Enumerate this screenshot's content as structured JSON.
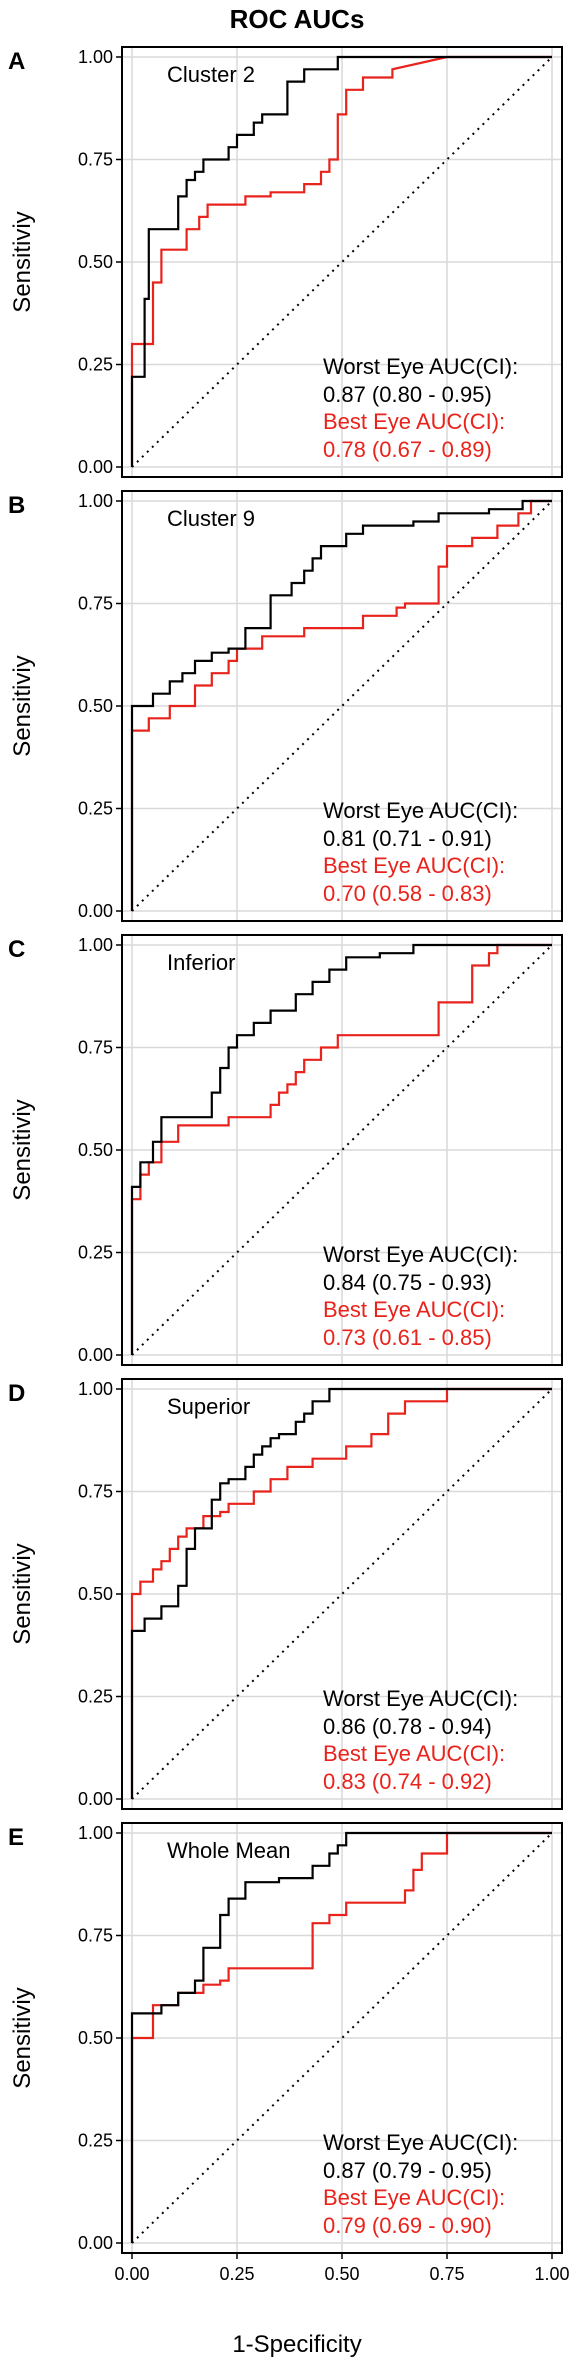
{
  "figure": {
    "title": "ROC AUCs",
    "xlabel": "1-Specificity",
    "ylabel": "Sensitiviy"
  },
  "colors": {
    "worst": "#000000",
    "best": "#e8231c",
    "grid": "#d9d9d9",
    "frame": "#000000"
  },
  "chart_data": [
    {
      "type": "line",
      "letter": "A",
      "label": "Cluster 2",
      "xlim": [
        0,
        1
      ],
      "ylim": [
        0,
        1
      ],
      "xticks": [
        "0.00",
        "0.25",
        "0.50",
        "0.75",
        "1.00"
      ],
      "yticks": [
        "0.00",
        "0.25",
        "0.50",
        "0.75",
        "1.00"
      ],
      "grid": true,
      "reference_line": "diagonal",
      "series": [
        {
          "x": [
            0,
            0,
            0.03,
            0.03,
            0.04,
            0.04,
            0.11,
            0.11,
            0.13,
            0.13,
            0.15,
            0.15,
            0.17,
            0.17,
            0.23,
            0.23,
            0.25,
            0.25,
            0.29,
            0.29,
            0.31,
            0.31,
            0.37,
            0.37,
            0.41,
            0.41,
            0.49,
            0.49,
            0.53,
            0.53,
            1.0
          ],
          "y": [
            0,
            0.22,
            0.22,
            0.41,
            0.41,
            0.58,
            0.58,
            0.66,
            0.66,
            0.7,
            0.7,
            0.72,
            0.72,
            0.75,
            0.75,
            0.78,
            0.78,
            0.81,
            0.81,
            0.84,
            0.84,
            0.86,
            0.86,
            0.94,
            0.94,
            0.97,
            0.97,
            1.0,
            1.0,
            1.0,
            1.0
          ]
        },
        {
          "x": [
            0,
            0,
            0.05,
            0.05,
            0.07,
            0.07,
            0.13,
            0.13,
            0.16,
            0.16,
            0.18,
            0.18,
            0.27,
            0.27,
            0.33,
            0.33,
            0.41,
            0.41,
            0.45,
            0.45,
            0.47,
            0.47,
            0.49,
            0.49,
            0.51,
            0.51,
            0.55,
            0.55,
            0.62,
            0.62,
            0.75,
            1.0
          ],
          "y": [
            0,
            0.3,
            0.3,
            0.45,
            0.45,
            0.53,
            0.53,
            0.58,
            0.58,
            0.61,
            0.61,
            0.64,
            0.64,
            0.66,
            0.66,
            0.67,
            0.67,
            0.69,
            0.69,
            0.72,
            0.72,
            0.75,
            0.75,
            0.86,
            0.86,
            0.92,
            0.92,
            0.95,
            0.95,
            0.97,
            1.0,
            1.0
          ]
        }
      ],
      "annotations": [
        {
          "line1": "Worst Eye AUC(CI):",
          "line2": "0.87 (0.80 - 0.95)"
        },
        {
          "line1": "Best Eye AUC(CI):",
          "line2": "0.78 (0.67 - 0.89)"
        }
      ]
    },
    {
      "type": "line",
      "letter": "B",
      "label": "Cluster 9",
      "xlim": [
        0,
        1
      ],
      "ylim": [
        0,
        1
      ],
      "xticks": [
        "0.00",
        "0.25",
        "0.50",
        "0.75",
        "1.00"
      ],
      "yticks": [
        "0.00",
        "0.25",
        "0.50",
        "0.75",
        "1.00"
      ],
      "grid": true,
      "reference_line": "diagonal",
      "series": [
        {
          "x": [
            0,
            0,
            0.05,
            0.05,
            0.09,
            0.09,
            0.12,
            0.12,
            0.15,
            0.15,
            0.19,
            0.19,
            0.23,
            0.23,
            0.27,
            0.27,
            0.33,
            0.33,
            0.38,
            0.38,
            0.41,
            0.41,
            0.43,
            0.43,
            0.45,
            0.45,
            0.51,
            0.51,
            0.55,
            0.55,
            0.67,
            0.67,
            0.73,
            0.73,
            0.85,
            0.85,
            0.93,
            0.93,
            0.97,
            0.97,
            1.0
          ],
          "y": [
            0,
            0.5,
            0.5,
            0.53,
            0.53,
            0.56,
            0.56,
            0.58,
            0.58,
            0.61,
            0.61,
            0.63,
            0.63,
            0.64,
            0.64,
            0.69,
            0.69,
            0.77,
            0.77,
            0.8,
            0.8,
            0.83,
            0.83,
            0.86,
            0.86,
            0.89,
            0.89,
            0.92,
            0.92,
            0.94,
            0.94,
            0.95,
            0.95,
            0.97,
            0.97,
            0.98,
            0.98,
            1.0,
            1.0,
            1.0,
            1.0
          ]
        },
        {
          "x": [
            0,
            0,
            0.04,
            0.04,
            0.09,
            0.09,
            0.15,
            0.15,
            0.19,
            0.19,
            0.23,
            0.23,
            0.25,
            0.25,
            0.31,
            0.31,
            0.41,
            0.41,
            0.55,
            0.55,
            0.63,
            0.63,
            0.65,
            0.65,
            0.73,
            0.73,
            0.75,
            0.75,
            0.81,
            0.81,
            0.87,
            0.87,
            0.92,
            0.92,
            0.95,
            0.95,
            1.0
          ],
          "y": [
            0,
            0.44,
            0.44,
            0.47,
            0.47,
            0.5,
            0.5,
            0.55,
            0.55,
            0.58,
            0.58,
            0.61,
            0.61,
            0.64,
            0.64,
            0.67,
            0.67,
            0.69,
            0.69,
            0.72,
            0.72,
            0.74,
            0.74,
            0.75,
            0.75,
            0.84,
            0.84,
            0.89,
            0.89,
            0.91,
            0.91,
            0.94,
            0.94,
            0.97,
            0.97,
            1.0,
            1.0
          ]
        }
      ],
      "annotations": [
        {
          "line1": "Worst Eye AUC(CI):",
          "line2": "0.81 (0.71 - 0.91)"
        },
        {
          "line1": "Best Eye AUC(CI):",
          "line2": "0.70 (0.58 - 0.83)"
        }
      ]
    },
    {
      "type": "line",
      "letter": "C",
      "label": "Inferior",
      "xlim": [
        0,
        1
      ],
      "ylim": [
        0,
        1
      ],
      "xticks": [
        "0.00",
        "0.25",
        "0.50",
        "0.75",
        "1.00"
      ],
      "yticks": [
        "0.00",
        "0.25",
        "0.50",
        "0.75",
        "1.00"
      ],
      "grid": true,
      "reference_line": "diagonal",
      "series": [
        {
          "x": [
            0,
            0,
            0.02,
            0.02,
            0.05,
            0.05,
            0.07,
            0.07,
            0.19,
            0.19,
            0.21,
            0.21,
            0.23,
            0.23,
            0.25,
            0.25,
            0.29,
            0.29,
            0.33,
            0.33,
            0.39,
            0.39,
            0.43,
            0.43,
            0.47,
            0.47,
            0.51,
            0.51,
            0.59,
            0.59,
            0.67,
            0.67,
            0.73,
            0.73,
            1.0
          ],
          "y": [
            0,
            0.41,
            0.41,
            0.47,
            0.47,
            0.52,
            0.52,
            0.58,
            0.58,
            0.64,
            0.64,
            0.7,
            0.7,
            0.75,
            0.75,
            0.78,
            0.78,
            0.81,
            0.81,
            0.84,
            0.84,
            0.88,
            0.88,
            0.91,
            0.91,
            0.94,
            0.94,
            0.97,
            0.97,
            0.98,
            0.98,
            1.0,
            1.0,
            1.0,
            1.0
          ]
        },
        {
          "x": [
            0,
            0,
            0.02,
            0.02,
            0.04,
            0.04,
            0.07,
            0.07,
            0.11,
            0.11,
            0.23,
            0.23,
            0.33,
            0.33,
            0.35,
            0.35,
            0.37,
            0.37,
            0.39,
            0.39,
            0.41,
            0.41,
            0.45,
            0.45,
            0.49,
            0.49,
            0.73,
            0.73,
            0.81,
            0.81,
            0.85,
            0.85,
            0.87,
            0.87,
            1.0
          ],
          "y": [
            0,
            0.38,
            0.38,
            0.44,
            0.44,
            0.47,
            0.47,
            0.52,
            0.52,
            0.56,
            0.56,
            0.58,
            0.58,
            0.61,
            0.61,
            0.64,
            0.64,
            0.66,
            0.66,
            0.69,
            0.69,
            0.72,
            0.72,
            0.75,
            0.75,
            0.78,
            0.78,
            0.86,
            0.86,
            0.95,
            0.95,
            0.98,
            0.98,
            1.0,
            1.0
          ]
        }
      ],
      "annotations": [
        {
          "line1": "Worst Eye AUC(CI):",
          "line2": "0.84 (0.75 - 0.93)"
        },
        {
          "line1": "Best Eye AUC(CI):",
          "line2": "0.73 (0.61 - 0.85)"
        }
      ]
    },
    {
      "type": "line",
      "letter": "D",
      "label": "Superior",
      "xlim": [
        0,
        1
      ],
      "ylim": [
        0,
        1
      ],
      "xticks": [
        "0.00",
        "0.25",
        "0.50",
        "0.75",
        "1.00"
      ],
      "yticks": [
        "0.00",
        "0.25",
        "0.50",
        "0.75",
        "1.00"
      ],
      "grid": true,
      "reference_line": "diagonal",
      "series": [
        {
          "x": [
            0,
            0,
            0.03,
            0.03,
            0.07,
            0.07,
            0.11,
            0.11,
            0.13,
            0.13,
            0.15,
            0.15,
            0.19,
            0.19,
            0.21,
            0.21,
            0.23,
            0.23,
            0.27,
            0.27,
            0.29,
            0.29,
            0.31,
            0.31,
            0.33,
            0.33,
            0.35,
            0.35,
            0.39,
            0.39,
            0.41,
            0.41,
            0.43,
            0.43,
            0.47,
            0.47,
            1.0
          ],
          "y": [
            0,
            0.41,
            0.41,
            0.44,
            0.44,
            0.47,
            0.47,
            0.52,
            0.52,
            0.61,
            0.61,
            0.66,
            0.66,
            0.73,
            0.73,
            0.77,
            0.77,
            0.78,
            0.78,
            0.81,
            0.81,
            0.84,
            0.84,
            0.86,
            0.86,
            0.88,
            0.88,
            0.89,
            0.89,
            0.92,
            0.92,
            0.94,
            0.94,
            0.97,
            0.97,
            1.0,
            1.0
          ]
        },
        {
          "x": [
            0,
            0,
            0.02,
            0.02,
            0.05,
            0.05,
            0.07,
            0.07,
            0.09,
            0.09,
            0.11,
            0.11,
            0.13,
            0.13,
            0.17,
            0.17,
            0.21,
            0.21,
            0.23,
            0.23,
            0.29,
            0.29,
            0.33,
            0.33,
            0.37,
            0.37,
            0.43,
            0.43,
            0.51,
            0.51,
            0.57,
            0.57,
            0.61,
            0.61,
            0.65,
            0.65,
            0.75,
            0.75,
            1.0
          ],
          "y": [
            0,
            0.5,
            0.5,
            0.53,
            0.53,
            0.56,
            0.56,
            0.58,
            0.58,
            0.61,
            0.61,
            0.64,
            0.64,
            0.66,
            0.66,
            0.69,
            0.69,
            0.7,
            0.7,
            0.72,
            0.72,
            0.75,
            0.75,
            0.78,
            0.78,
            0.81,
            0.81,
            0.83,
            0.83,
            0.86,
            0.86,
            0.89,
            0.89,
            0.94,
            0.94,
            0.97,
            0.97,
            1.0,
            1.0
          ]
        }
      ],
      "annotations": [
        {
          "line1": "Worst Eye AUC(CI):",
          "line2": "0.86 (0.78 - 0.94)"
        },
        {
          "line1": "Best Eye AUC(CI):",
          "line2": "0.83 (0.74 - 0.92)"
        }
      ]
    },
    {
      "type": "line",
      "letter": "E",
      "label": "Whole Mean",
      "xlim": [
        0,
        1
      ],
      "ylim": [
        0,
        1
      ],
      "xticks": [
        "0.00",
        "0.25",
        "0.50",
        "0.75",
        "1.00"
      ],
      "yticks": [
        "0.00",
        "0.25",
        "0.50",
        "0.75",
        "1.00"
      ],
      "grid": true,
      "reference_line": "diagonal",
      "series": [
        {
          "x": [
            0,
            0,
            0.07,
            0.07,
            0.11,
            0.11,
            0.15,
            0.15,
            0.17,
            0.17,
            0.21,
            0.21,
            0.23,
            0.23,
            0.27,
            0.27,
            0.35,
            0.35,
            0.43,
            0.43,
            0.47,
            0.47,
            0.49,
            0.49,
            0.51,
            0.51,
            1.0
          ],
          "y": [
            0,
            0.56,
            0.56,
            0.58,
            0.58,
            0.61,
            0.61,
            0.64,
            0.64,
            0.72,
            0.72,
            0.8,
            0.8,
            0.84,
            0.84,
            0.88,
            0.88,
            0.89,
            0.89,
            0.92,
            0.92,
            0.95,
            0.95,
            0.97,
            0.97,
            1.0,
            1.0
          ]
        },
        {
          "x": [
            0,
            0,
            0.05,
            0.05,
            0.11,
            0.11,
            0.17,
            0.17,
            0.21,
            0.21,
            0.23,
            0.23,
            0.43,
            0.43,
            0.47,
            0.47,
            0.51,
            0.51,
            0.65,
            0.65,
            0.67,
            0.67,
            0.69,
            0.69,
            0.75,
            0.75,
            1.0
          ],
          "y": [
            0,
            0.5,
            0.5,
            0.58,
            0.58,
            0.61,
            0.61,
            0.63,
            0.63,
            0.64,
            0.64,
            0.67,
            0.67,
            0.78,
            0.78,
            0.8,
            0.8,
            0.83,
            0.83,
            0.86,
            0.86,
            0.91,
            0.91,
            0.95,
            0.95,
            1.0,
            1.0
          ]
        }
      ],
      "annotations": [
        {
          "line1": "Worst Eye AUC(CI):",
          "line2": "0.87 (0.79 - 0.95)"
        },
        {
          "line1": "Best Eye AUC(CI):",
          "line2": "0.79 (0.69 - 0.90)"
        }
      ]
    }
  ]
}
